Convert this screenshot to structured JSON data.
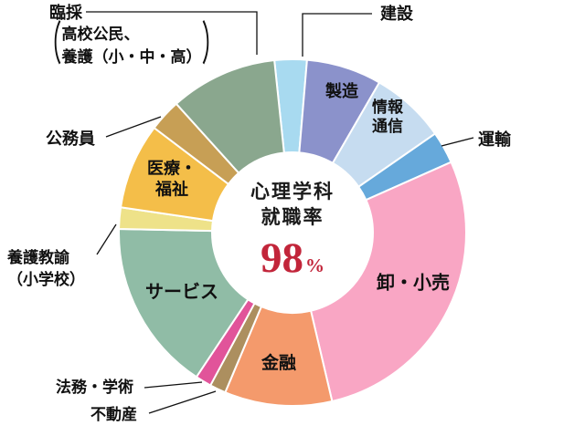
{
  "chart_data": {
    "type": "pie",
    "variant": "donut",
    "title": "心理学科 就職率 98%",
    "legend": "none",
    "start_angle_deg": -6,
    "line_color": "#111111",
    "center": {
      "line1": "心理学科",
      "line2": "就職率",
      "value": "98",
      "unit": "%",
      "value_color": "#c2253a"
    },
    "slices": [
      {
        "label": "建設",
        "percent": 3,
        "color": "#a8daf0"
      },
      {
        "label": "製造",
        "percent": 7,
        "color": "#8b92cb"
      },
      {
        "label": "情報通信",
        "percent": 7,
        "color": "#c6dcf0",
        "lines": [
          "情報",
          "通信"
        ]
      },
      {
        "label": "運輸",
        "percent": 3,
        "color": "#66a9db"
      },
      {
        "label": "卸・小売",
        "percent": 28,
        "color": "#f9a6c4"
      },
      {
        "label": "金融",
        "percent": 10,
        "color": "#f49a6c"
      },
      {
        "label": "不動産",
        "percent": 1.5,
        "color": "#ac8f5f"
      },
      {
        "label": "法務・学術",
        "percent": 1.5,
        "color": "#e1549a"
      },
      {
        "label": "サービス",
        "percent": 16,
        "color": "#90bca6"
      },
      {
        "label": "養護教諭（小学校）",
        "percent": 2,
        "color": "#eee289",
        "lines": [
          "養護教諭",
          "（小学校）"
        ]
      },
      {
        "label": "医療・福祉",
        "percent": 8,
        "color": "#f4be49",
        "lines": [
          "医療・",
          "福祉"
        ]
      },
      {
        "label": "公務員",
        "percent": 3,
        "color": "#c79f55"
      },
      {
        "label": "臨採（高校公民、養護（小・中・高））",
        "percent": 10,
        "color": "#8aa78e",
        "short_label": "臨採",
        "sub_lines": [
          "高校公民、",
          "養護（小・中・高）"
        ]
      }
    ]
  }
}
